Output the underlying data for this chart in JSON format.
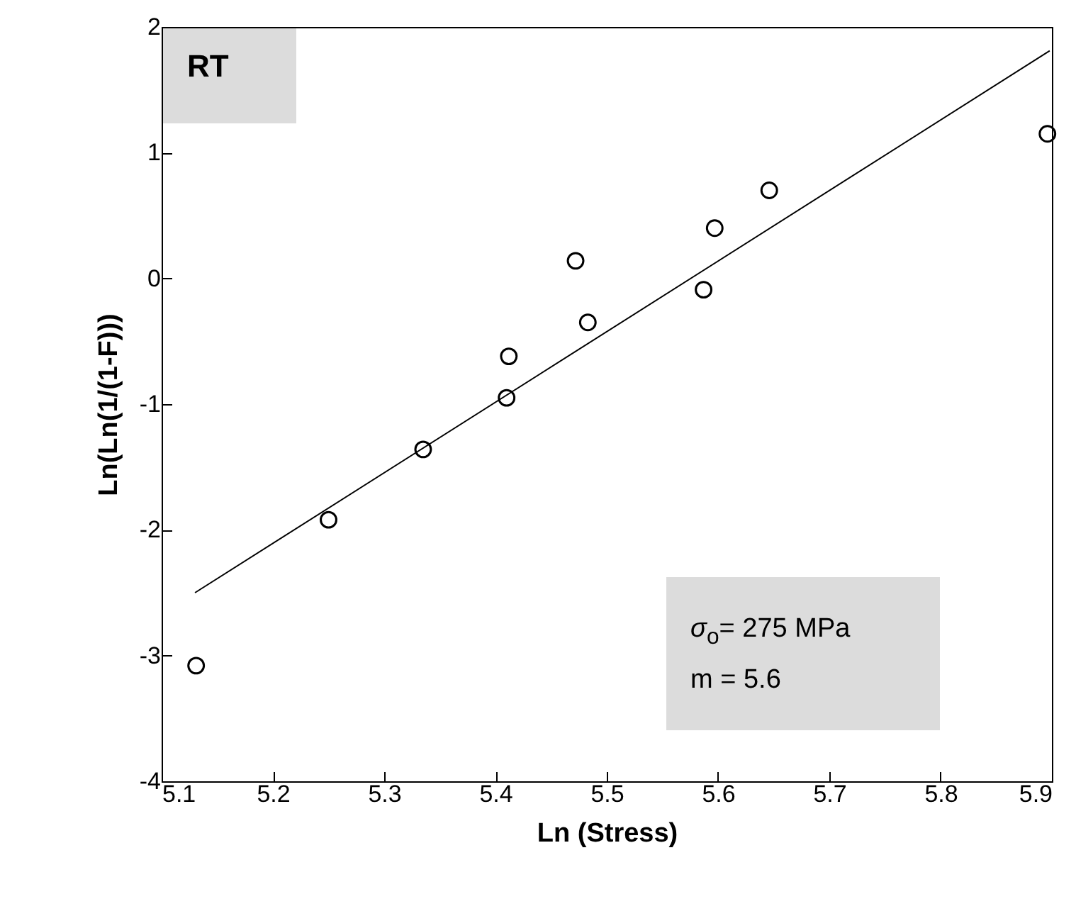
{
  "chart_data": {
    "type": "scatter",
    "xlabel": "Ln (Stress)",
    "ylabel": "Ln(Ln(1/(1-F)))",
    "annotations": [
      "RT",
      "σ$_{o}$= 275 MPa",
      "m = 5.6"
    ],
    "xlim": [
      5.1,
      5.9
    ],
    "xticks": [
      5.1,
      5.2,
      5.3,
      5.4,
      5.5,
      5.6,
      5.7,
      5.8,
      5.9
    ],
    "ylim": [
      -4,
      2
    ],
    "yticks": [
      -4,
      -3,
      -2,
      -1,
      0,
      1,
      2
    ],
    "grid": false,
    "series": [
      {
        "marker": "circle",
        "color": "#000000",
        "x": [
          5.131,
          5.25,
          5.335,
          5.41,
          5.412,
          5.472,
          5.483,
          5.587,
          5.597,
          5.646,
          5.896
        ],
        "values": [
          -3.08,
          -1.92,
          -1.36,
          -0.95,
          -0.62,
          0.14,
          -0.35,
          -0.09,
          0.4,
          0.7,
          1.15
        ]
      },
      {
        "type": "line",
        "color": "#000000",
        "x": [
          5.13,
          5.898
        ],
        "values": [
          -2.5,
          1.81
        ]
      }
    ]
  }
}
